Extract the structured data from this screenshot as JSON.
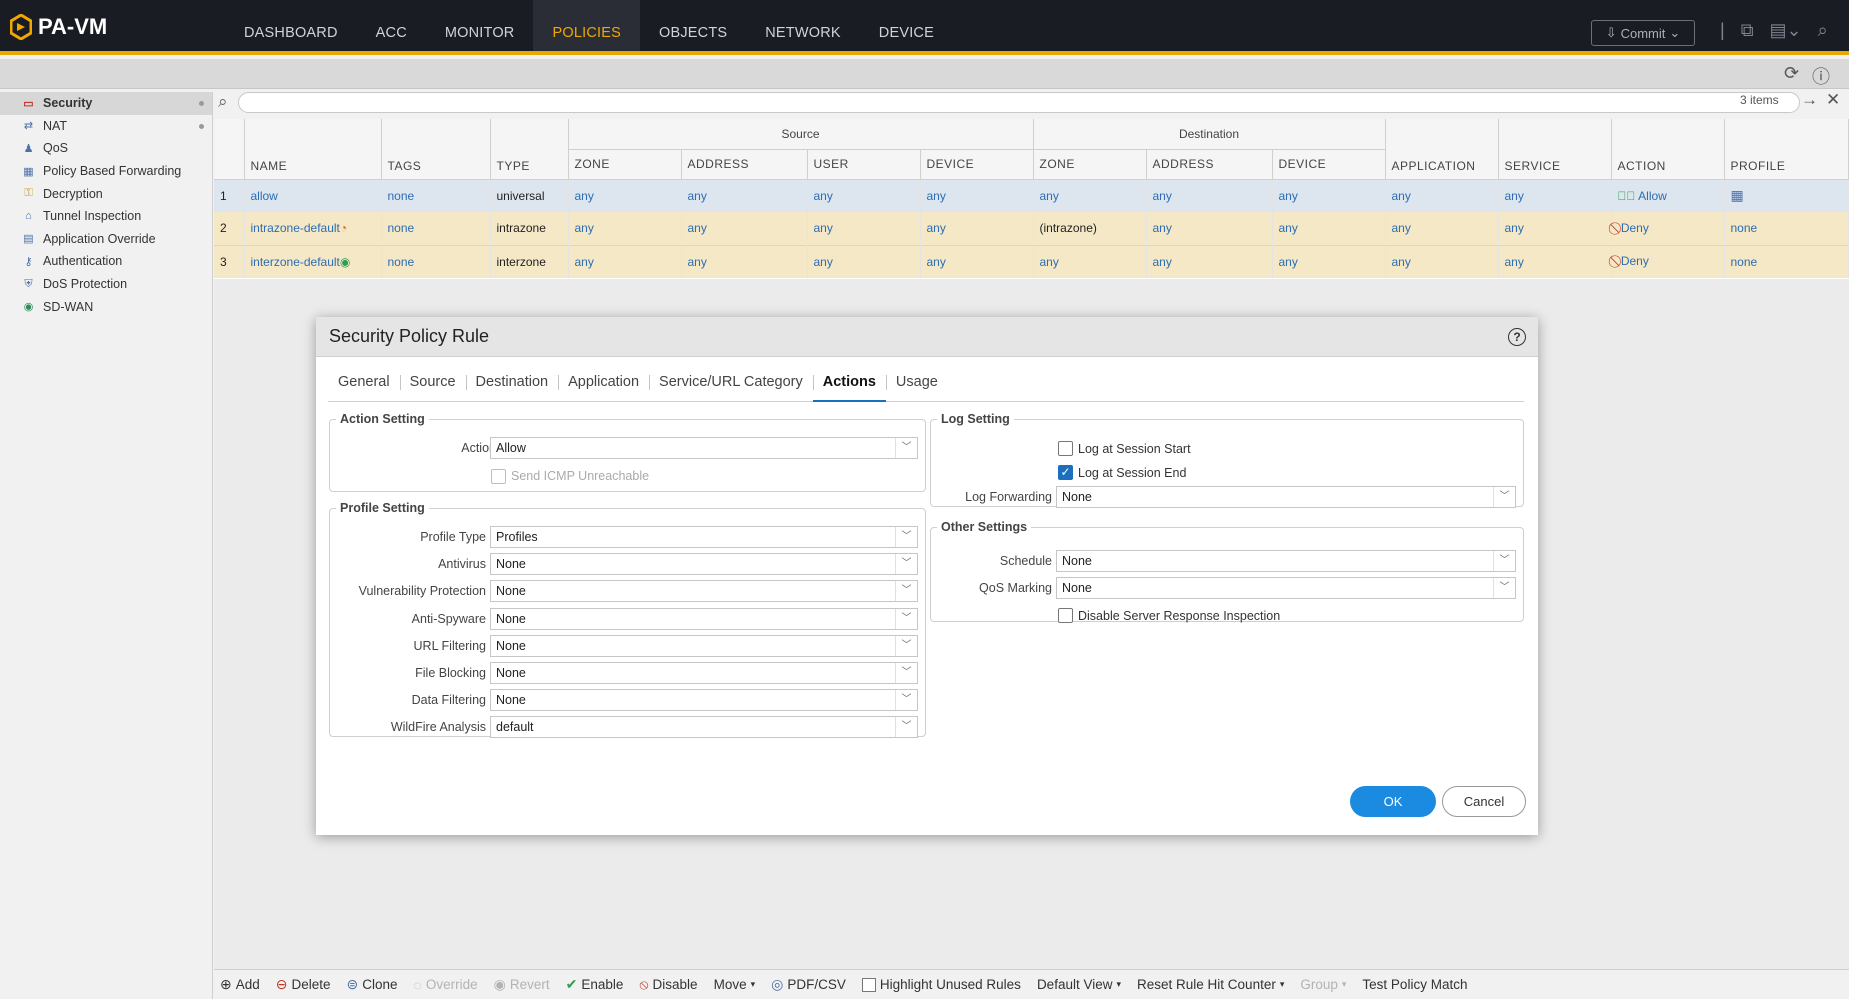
{
  "app": {
    "title": "PA-VM"
  },
  "nav": {
    "items": [
      "DASHBOARD",
      "ACC",
      "MONITOR",
      "POLICIES",
      "OBJECTS",
      "NETWORK",
      "DEVICE"
    ],
    "active": "POLICIES"
  },
  "header": {
    "commit_label": "Commit"
  },
  "sidebar": {
    "items": [
      {
        "label": "Security",
        "icon": "security-rule-icon",
        "active": true
      },
      {
        "label": "NAT",
        "icon": "nat-icon"
      },
      {
        "label": "QoS",
        "icon": "qos-icon"
      },
      {
        "label": "Policy Based Forwarding",
        "icon": "pbf-icon"
      },
      {
        "label": "Decryption",
        "icon": "decryption-icon"
      },
      {
        "label": "Tunnel Inspection",
        "icon": "tunnel-icon"
      },
      {
        "label": "Application Override",
        "icon": "app-override-icon"
      },
      {
        "label": "Authentication",
        "icon": "authentication-icon"
      },
      {
        "label": "DoS Protection",
        "icon": "dos-icon"
      },
      {
        "label": "SD-WAN",
        "icon": "sdwan-icon"
      }
    ]
  },
  "table": {
    "count": "3 items",
    "groups": {
      "source": "Source",
      "destination": "Destination"
    },
    "columns": [
      "NAME",
      "TAGS",
      "TYPE",
      "ZONE",
      "ADDRESS",
      "USER",
      "DEVICE",
      "ZONE",
      "ADDRESS",
      "DEVICE",
      "APPLICATION",
      "SERVICE",
      "ACTION",
      "PROFILE"
    ],
    "rows": [
      {
        "num": "1",
        "name": "allow",
        "tags": "none",
        "type": "universal",
        "src_zone": "any",
        "src_addr": "any",
        "src_user": "any",
        "src_dev": "any",
        "dst_zone": "any",
        "dst_addr": "any",
        "dst_dev": "any",
        "app": "any",
        "service": "any",
        "action": "Allow",
        "profile": ""
      },
      {
        "num": "2",
        "name": "intrazone-default",
        "tags": "none",
        "type": "intrazone",
        "src_zone": "any",
        "src_addr": "any",
        "src_user": "any",
        "src_dev": "any",
        "dst_zone": "(intrazone)",
        "dst_addr": "any",
        "dst_dev": "any",
        "app": "any",
        "service": "any",
        "action": "Deny",
        "profile": "none"
      },
      {
        "num": "3",
        "name": "interzone-default",
        "tags": "none",
        "type": "interzone",
        "src_zone": "any",
        "src_addr": "any",
        "src_user": "any",
        "src_dev": "any",
        "dst_zone": "any",
        "dst_addr": "any",
        "dst_dev": "any",
        "app": "any",
        "service": "any",
        "action": "Deny",
        "profile": "none"
      }
    ]
  },
  "toolbar": {
    "add": "Add",
    "delete": "Delete",
    "clone": "Clone",
    "override": "Override",
    "revert": "Revert",
    "enable": "Enable",
    "disable": "Disable",
    "move": "Move",
    "pdf": "PDF/CSV",
    "highlight": "Highlight Unused Rules",
    "default_view": "Default View",
    "reset": "Reset Rule Hit Counter",
    "group": "Group",
    "test": "Test Policy Match"
  },
  "dialog": {
    "title": "Security Policy Rule",
    "tabs": [
      "General",
      "Source",
      "Destination",
      "Application",
      "Service/URL Category",
      "Actions",
      "Usage"
    ],
    "active_tab": "Actions",
    "action_setting": {
      "legend": "Action Setting",
      "action_label": "Action",
      "action_value": "Allow",
      "icmp_label": "Send ICMP Unreachable"
    },
    "profile_setting": {
      "legend": "Profile Setting",
      "fields": [
        {
          "label": "Profile Type",
          "value": "Profiles"
        },
        {
          "label": "Antivirus",
          "value": "None"
        },
        {
          "label": "Vulnerability Protection",
          "value": "None"
        },
        {
          "label": "Anti-Spyware",
          "value": "None"
        },
        {
          "label": "URL Filtering",
          "value": "None"
        },
        {
          "label": "File Blocking",
          "value": "None"
        },
        {
          "label": "Data Filtering",
          "value": "None"
        },
        {
          "label": "WildFire Analysis",
          "value": "default"
        }
      ]
    },
    "log_setting": {
      "legend": "Log Setting",
      "start_label": "Log at Session Start",
      "start_checked": false,
      "end_label": "Log at Session End",
      "end_checked": true,
      "fwd_label": "Log Forwarding",
      "fwd_value": "None"
    },
    "other_settings": {
      "legend": "Other Settings",
      "schedule_label": "Schedule",
      "schedule_value": "None",
      "qos_label": "QoS Marking",
      "qos_value": "None",
      "dsri_label": "Disable Server Response Inspection"
    },
    "ok": "OK",
    "cancel": "Cancel"
  }
}
